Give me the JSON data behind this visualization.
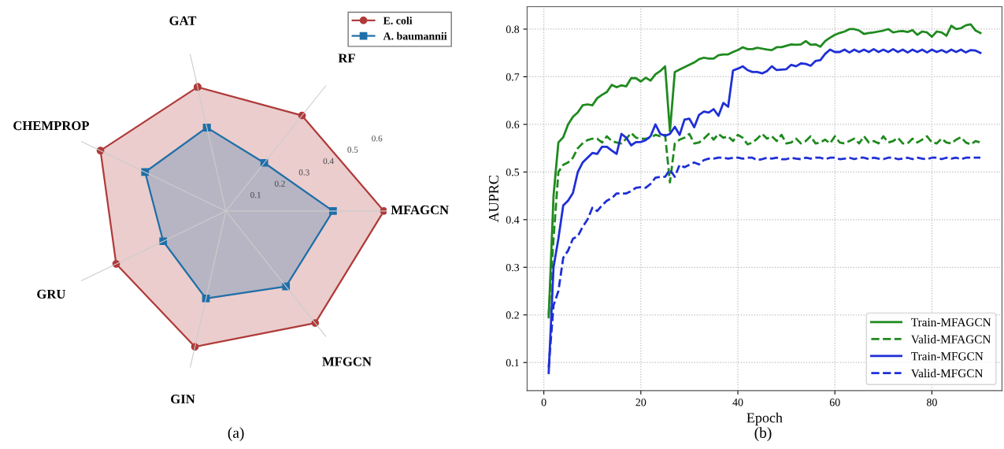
{
  "chart_data": [
    {
      "type": "radar",
      "categories": [
        "GAT",
        "RF",
        "MFAGCN",
        "MFGCN",
        "GIN",
        "GRU",
        "CHEMPROP"
      ],
      "ylim": [
        0,
        0.6
      ],
      "yticks": [
        0.1,
        0.2,
        0.3,
        0.4,
        0.5,
        0.6
      ],
      "grid": true,
      "legend": "top right",
      "annotations": [
        "(a)"
      ],
      "series": [
        {
          "name": "E. coli",
          "color": "#b03a3a",
          "marker": "circle",
          "values": [
            0.475,
            0.456,
            0.59,
            0.535,
            0.52,
            0.455,
            0.52
          ]
        },
        {
          "name": "A. baumannii",
          "color": "#1f6fa8",
          "marker": "square",
          "values": [
            0.32,
            0.23,
            0.4,
            0.36,
            0.335,
            0.26,
            0.335
          ]
        }
      ]
    },
    {
      "type": "line",
      "xlabel": "Epoch",
      "ylabel": "AUPRC",
      "xlim": [
        -3.45,
        94.45
      ],
      "ylim": [
        0.041,
        0.847
      ],
      "xticks": [
        0,
        20,
        40,
        60,
        80
      ],
      "yticks": [
        0.1,
        0.2,
        0.3,
        0.4,
        0.5,
        0.6,
        0.7,
        0.8
      ],
      "grid": true,
      "legend": "bottom right",
      "annotations": [
        "(b)"
      ],
      "x": [
        1,
        2,
        3,
        4,
        5,
        6,
        7,
        8,
        9,
        10,
        11,
        12,
        13,
        14,
        15,
        16,
        17,
        18,
        19,
        20,
        21,
        22,
        23,
        24,
        25,
        26,
        27,
        28,
        29,
        30,
        31,
        32,
        33,
        34,
        35,
        36,
        37,
        38,
        39,
        40,
        41,
        42,
        43,
        44,
        45,
        46,
        47,
        48,
        49,
        50,
        51,
        52,
        53,
        54,
        55,
        56,
        57,
        58,
        59,
        60,
        61,
        62,
        63,
        64,
        65,
        66,
        67,
        68,
        69,
        70,
        71,
        72,
        73,
        74,
        75,
        76,
        77,
        78,
        79,
        80,
        81,
        82,
        83,
        84,
        85,
        86,
        87,
        88,
        89,
        90
      ],
      "series": [
        {
          "name": "Train-MFAGCN",
          "color": "#1f8a1f",
          "line_style": "solid",
          "values": [
            0.195,
            0.45,
            0.562,
            0.573,
            0.6,
            0.616,
            0.625,
            0.64,
            0.642,
            0.64,
            0.655,
            0.662,
            0.668,
            0.683,
            0.678,
            0.682,
            0.68,
            0.697,
            0.697,
            0.69,
            0.698,
            0.692,
            0.705,
            0.712,
            0.722,
            0.585,
            0.71,
            0.715,
            0.72,
            0.725,
            0.73,
            0.737,
            0.74,
            0.738,
            0.738,
            0.745,
            0.747,
            0.747,
            0.752,
            0.756,
            0.762,
            0.758,
            0.758,
            0.761,
            0.759,
            0.757,
            0.756,
            0.762,
            0.762,
            0.765,
            0.768,
            0.767,
            0.768,
            0.775,
            0.767,
            0.768,
            0.763,
            0.775,
            0.782,
            0.788,
            0.792,
            0.795,
            0.8,
            0.8,
            0.797,
            0.79,
            0.792,
            0.793,
            0.795,
            0.797,
            0.8,
            0.793,
            0.795,
            0.796,
            0.794,
            0.798,
            0.788,
            0.795,
            0.793,
            0.784,
            0.795,
            0.793,
            0.786,
            0.807,
            0.8,
            0.802,
            0.808,
            0.81,
            0.797,
            0.792
          ]
        },
        {
          "name": "Valid-MFAGCN",
          "color": "#1f8a1f",
          "line_style": "dashed",
          "values": [
            0.2,
            0.36,
            0.5,
            0.515,
            0.52,
            0.53,
            0.55,
            0.56,
            0.567,
            0.57,
            0.57,
            0.562,
            0.575,
            0.565,
            0.562,
            0.56,
            0.57,
            0.582,
            0.572,
            0.57,
            0.57,
            0.572,
            0.578,
            0.575,
            0.578,
            0.478,
            0.56,
            0.568,
            0.572,
            0.58,
            0.56,
            0.562,
            0.57,
            0.58,
            0.568,
            0.58,
            0.572,
            0.575,
            0.565,
            0.578,
            0.572,
            0.558,
            0.562,
            0.57,
            0.58,
            0.57,
            0.575,
            0.565,
            0.578,
            0.56,
            0.562,
            0.57,
            0.56,
            0.565,
            0.575,
            0.56,
            0.562,
            0.568,
            0.56,
            0.575,
            0.562,
            0.56,
            0.565,
            0.57,
            0.56,
            0.575,
            0.562,
            0.565,
            0.56,
            0.575,
            0.562,
            0.565,
            0.572,
            0.56,
            0.56,
            0.57,
            0.562,
            0.568,
            0.575,
            0.562,
            0.56,
            0.57,
            0.562,
            0.56,
            0.568,
            0.573,
            0.562,
            0.558,
            0.565,
            0.562
          ]
        },
        {
          "name": "Train-MFGCN",
          "color": "#1f2fd6",
          "line_style": "solid",
          "values": [
            0.078,
            0.3,
            0.36,
            0.43,
            0.44,
            0.456,
            0.5,
            0.52,
            0.53,
            0.54,
            0.538,
            0.553,
            0.553,
            0.545,
            0.538,
            0.58,
            0.572,
            0.556,
            0.563,
            0.563,
            0.567,
            0.575,
            0.6,
            0.58,
            0.576,
            0.58,
            0.595,
            0.578,
            0.61,
            0.612,
            0.594,
            0.62,
            0.627,
            0.625,
            0.632,
            0.618,
            0.645,
            0.637,
            0.713,
            0.717,
            0.722,
            0.714,
            0.71,
            0.71,
            0.707,
            0.712,
            0.722,
            0.714,
            0.715,
            0.716,
            0.725,
            0.722,
            0.728,
            0.727,
            0.723,
            0.733,
            0.735,
            0.748,
            0.757,
            0.752,
            0.752,
            0.757,
            0.751,
            0.757,
            0.752,
            0.757,
            0.752,
            0.758,
            0.752,
            0.757,
            0.752,
            0.758,
            0.752,
            0.757,
            0.751,
            0.757,
            0.752,
            0.757,
            0.751,
            0.757,
            0.752,
            0.756,
            0.751,
            0.757,
            0.752,
            0.757,
            0.751,
            0.756,
            0.755,
            0.75
          ]
        },
        {
          "name": "Valid-MFGCN",
          "color": "#1f2fd6",
          "line_style": "dashed",
          "values": [
            0.09,
            0.22,
            0.25,
            0.32,
            0.335,
            0.36,
            0.365,
            0.385,
            0.4,
            0.425,
            0.418,
            0.43,
            0.44,
            0.445,
            0.455,
            0.455,
            0.455,
            0.46,
            0.467,
            0.468,
            0.467,
            0.475,
            0.488,
            0.49,
            0.49,
            0.505,
            0.49,
            0.515,
            0.51,
            0.515,
            0.52,
            0.516,
            0.525,
            0.528,
            0.528,
            0.53,
            0.53,
            0.528,
            0.53,
            0.53,
            0.528,
            0.53,
            0.53,
            0.525,
            0.527,
            0.53,
            0.528,
            0.53,
            0.527,
            0.527,
            0.53,
            0.528,
            0.527,
            0.53,
            0.528,
            0.53,
            0.53,
            0.527,
            0.53,
            0.53,
            0.527,
            0.528,
            0.53,
            0.527,
            0.53,
            0.53,
            0.527,
            0.53,
            0.528,
            0.527,
            0.53,
            0.53,
            0.527,
            0.528,
            0.53,
            0.527,
            0.53,
            0.528,
            0.527,
            0.53,
            0.53,
            0.527,
            0.53,
            0.528,
            0.53,
            0.527,
            0.53,
            0.53,
            0.53,
            0.53
          ]
        }
      ]
    }
  ]
}
